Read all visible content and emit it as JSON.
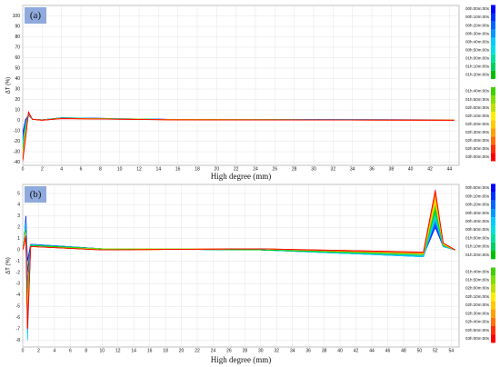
{
  "chart_data": [
    {
      "type": "line",
      "panel_label": "(a)",
      "y_label": "ΔT (%)",
      "x_label": "High degree (mm)",
      "xlim": [
        0,
        45
      ],
      "ylim": [
        -43,
        110
      ],
      "xticks": [
        0,
        2,
        4,
        6,
        8,
        10,
        12,
        14,
        16,
        18,
        20,
        22,
        24,
        26,
        28,
        30,
        32,
        34,
        36,
        38,
        40,
        42,
        44
      ],
      "yticks": [
        -40,
        -30,
        -20,
        -10,
        0,
        10,
        20,
        30,
        40,
        50,
        60,
        70,
        80,
        90,
        100
      ],
      "grid": true,
      "x": [
        0,
        0.3,
        0.6,
        1,
        2,
        4,
        15,
        30,
        44.5
      ],
      "series": [
        {
          "name": "00h:00m:00s",
          "color": "#0000ff",
          "values": [
            -12,
            1,
            5,
            1,
            0.5,
            2.5,
            1,
            0.8,
            0.5
          ]
        },
        {
          "name": "00h:10m:00s",
          "color": "#0033ff",
          "values": [
            -15,
            0,
            5,
            1,
            0.5,
            2.5,
            1,
            0.8,
            0.5
          ]
        },
        {
          "name": "00h:20m:00s",
          "color": "#0066ff",
          "values": [
            -18,
            -2,
            6,
            1,
            0.5,
            2.4,
            1,
            0.7,
            0.5
          ]
        },
        {
          "name": "00h:30m:00s",
          "color": "#0099ff",
          "values": [
            -20,
            -3,
            6,
            1,
            0.5,
            2.4,
            1,
            0.7,
            0.4
          ]
        },
        {
          "name": "00h:40m:00s",
          "color": "#00ccff",
          "values": [
            -22,
            -4,
            6,
            1,
            0.4,
            2.3,
            0.9,
            0.7,
            0.4
          ]
        },
        {
          "name": "00h:50m:00s",
          "color": "#00e0e0",
          "values": [
            -24,
            -5,
            6,
            1,
            0.4,
            2.3,
            0.9,
            0.7,
            0.4
          ]
        },
        {
          "name": "01h:00m:00s",
          "color": "#00e0a0",
          "values": [
            -26,
            -6,
            7,
            1,
            0.4,
            2.2,
            0.9,
            0.6,
            0.4
          ]
        },
        {
          "name": "01h:10m:00s",
          "color": "#00d060",
          "values": [
            -28,
            -7,
            7,
            1,
            0.4,
            2.2,
            0.9,
            0.6,
            0.4
          ]
        },
        {
          "name": "01h:20m:00s",
          "color": "#00c000",
          "values": [
            -30,
            -8,
            7,
            1,
            0.4,
            2.1,
            0.8,
            0.6,
            0.3
          ]
        },
        {
          "name": "01h:40m:00s",
          "color": "#40d000",
          "values": [
            -31,
            -9,
            7,
            1,
            0.3,
            2.1,
            0.8,
            0.6,
            0.3
          ]
        },
        {
          "name": "01h:50m:00s",
          "color": "#80e000",
          "values": [
            -32,
            -10,
            7,
            1,
            0.3,
            2,
            0.8,
            0.5,
            0.3
          ]
        },
        {
          "name": "02h:00m:00s",
          "color": "#c0e000",
          "values": [
            -33,
            -11,
            7,
            1,
            0.3,
            2,
            0.8,
            0.5,
            0.3
          ]
        },
        {
          "name": "02h:10m:00s",
          "color": "#ffee00",
          "values": [
            -34,
            -12,
            7,
            1,
            0.3,
            1.9,
            0.7,
            0.5,
            0.3
          ]
        },
        {
          "name": "02h:20m:00s",
          "color": "#ffcc00",
          "values": [
            -35,
            -13,
            7,
            1,
            0.3,
            1.9,
            0.7,
            0.5,
            0.2
          ]
        },
        {
          "name": "02h:30m:00s",
          "color": "#ffa000",
          "values": [
            -36,
            -14,
            7,
            1,
            0.2,
            1.8,
            0.7,
            0.4,
            0.2
          ]
        },
        {
          "name": "02h:40m:00s",
          "color": "#ff7000",
          "values": [
            -37,
            -15,
            7,
            1,
            0.2,
            1.8,
            0.7,
            0.4,
            0.2
          ]
        },
        {
          "name": "02h:50m:00s",
          "color": "#ff3000",
          "values": [
            -38,
            -16,
            8,
            1,
            0.2,
            1.7,
            0.6,
            0.4,
            0.2
          ]
        },
        {
          "name": "03h:00m:00s",
          "color": "#ff0000",
          "values": [
            -39,
            -17,
            8,
            1,
            0.2,
            1.7,
            0.6,
            0.4,
            0.2
          ]
        }
      ]
    },
    {
      "type": "line",
      "panel_label": "(b)",
      "y_label": "ΔT (%)",
      "x_label": "High degree (mm)",
      "xlim": [
        0,
        55
      ],
      "ylim": [
        -8.6,
        5.8
      ],
      "xticks": [
        0,
        2,
        4,
        6,
        8,
        10,
        12,
        14,
        16,
        18,
        20,
        22,
        24,
        26,
        28,
        30,
        32,
        34,
        36,
        38,
        40,
        42,
        44,
        46,
        48,
        50,
        52,
        54
      ],
      "yticks": [
        -8,
        -7,
        -6,
        -5,
        -4,
        -3,
        -2,
        -1,
        0,
        1,
        2,
        3,
        4,
        5
      ],
      "grid": true,
      "x": [
        0,
        0.2,
        0.4,
        0.6,
        1,
        10,
        30,
        50.5,
        52,
        53,
        54.5
      ],
      "series": [
        {
          "name": "00h:00m:00s",
          "color": "#0000ff",
          "values": [
            0,
            1,
            3,
            -1,
            0.5,
            0.1,
            0,
            -0.5,
            2,
            0.3,
            0
          ]
        },
        {
          "name": "00h:10m:00s",
          "color": "#0033ff",
          "values": [
            0,
            1,
            2.8,
            -2,
            0.5,
            0.1,
            0,
            -0.5,
            2.2,
            0.3,
            0
          ]
        },
        {
          "name": "00h:20m:00s",
          "color": "#0066ff",
          "values": [
            0,
            1,
            2.6,
            -3,
            0.5,
            0.1,
            0,
            -0.6,
            2.4,
            0.3,
            0
          ]
        },
        {
          "name": "00h:30m:00s",
          "color": "#0099ff",
          "values": [
            0,
            1,
            2.4,
            -4,
            0.5,
            0.1,
            0,
            -0.6,
            2.6,
            0.3,
            0
          ]
        },
        {
          "name": "00h:40m:00s",
          "color": "#00ccff",
          "values": [
            0,
            0.9,
            2.2,
            -8,
            0.4,
            0.1,
            0,
            -0.6,
            2.8,
            0.3,
            0
          ]
        },
        {
          "name": "00h:50m:00s",
          "color": "#00e0e0",
          "values": [
            0,
            0.9,
            2,
            -5,
            0.4,
            0.1,
            0,
            -0.5,
            3,
            0.4,
            0
          ]
        },
        {
          "name": "01h:00m:00s",
          "color": "#00e0a0",
          "values": [
            0,
            0.9,
            1.9,
            -4,
            0.4,
            0.1,
            0,
            -0.5,
            3.2,
            0.4,
            0
          ]
        },
        {
          "name": "01h:10m:00s",
          "color": "#00d060",
          "values": [
            0,
            0.8,
            1.8,
            -4,
            0.4,
            0.1,
            0,
            -0.4,
            3.4,
            0.4,
            0
          ]
        },
        {
          "name": "01h:20m:00s",
          "color": "#00c000",
          "values": [
            0,
            0.8,
            1.7,
            -5,
            0.4,
            0.1,
            0,
            -0.4,
            3.6,
            0.4,
            0
          ]
        },
        {
          "name": "01h:40m:00s",
          "color": "#40d000",
          "values": [
            0,
            0.8,
            1.6,
            -5,
            0.3,
            0.1,
            0.1,
            -0.4,
            3.8,
            0.4,
            0
          ]
        },
        {
          "name": "01h:50m:00s",
          "color": "#80e000",
          "values": [
            0,
            0.7,
            1.5,
            -5,
            0.3,
            0.1,
            0.1,
            -0.4,
            4,
            0.5,
            0
          ]
        },
        {
          "name": "02h:00m:00s",
          "color": "#c0e000",
          "values": [
            0,
            0.7,
            1.5,
            -6,
            0.3,
            0,
            0.1,
            -0.3,
            4.2,
            0.5,
            0
          ]
        },
        {
          "name": "02h:10m:00s",
          "color": "#ffee00",
          "values": [
            0,
            0.7,
            1.4,
            -6,
            0.3,
            0,
            0.1,
            -0.3,
            4.4,
            0.5,
            0
          ]
        },
        {
          "name": "02h:20m:00s",
          "color": "#ffcc00",
          "values": [
            0,
            0.6,
            1.4,
            -6,
            0.3,
            0,
            0.1,
            -0.3,
            4.6,
            0.5,
            0
          ]
        },
        {
          "name": "02h:30m:00s",
          "color": "#ffa000",
          "values": [
            0,
            0.6,
            1.3,
            -6,
            0.3,
            0,
            0.1,
            -0.3,
            4.8,
            0.6,
            0
          ]
        },
        {
          "name": "02h:40m:00s",
          "color": "#ff7000",
          "values": [
            0,
            0.6,
            1.3,
            -7,
            0.3,
            0,
            0.1,
            -0.3,
            5,
            0.6,
            0
          ]
        },
        {
          "name": "02h:50m:00s",
          "color": "#ff3000",
          "values": [
            0,
            0.5,
            1.2,
            -7,
            0.3,
            0,
            0.1,
            -0.2,
            5.2,
            0.6,
            0
          ]
        },
        {
          "name": "03h:00m:00s",
          "color": "#ff0000",
          "values": [
            0,
            0.5,
            1.2,
            -7,
            0.3,
            0,
            0.1,
            -0.2,
            5.3,
            0.6,
            0
          ]
        }
      ]
    }
  ]
}
